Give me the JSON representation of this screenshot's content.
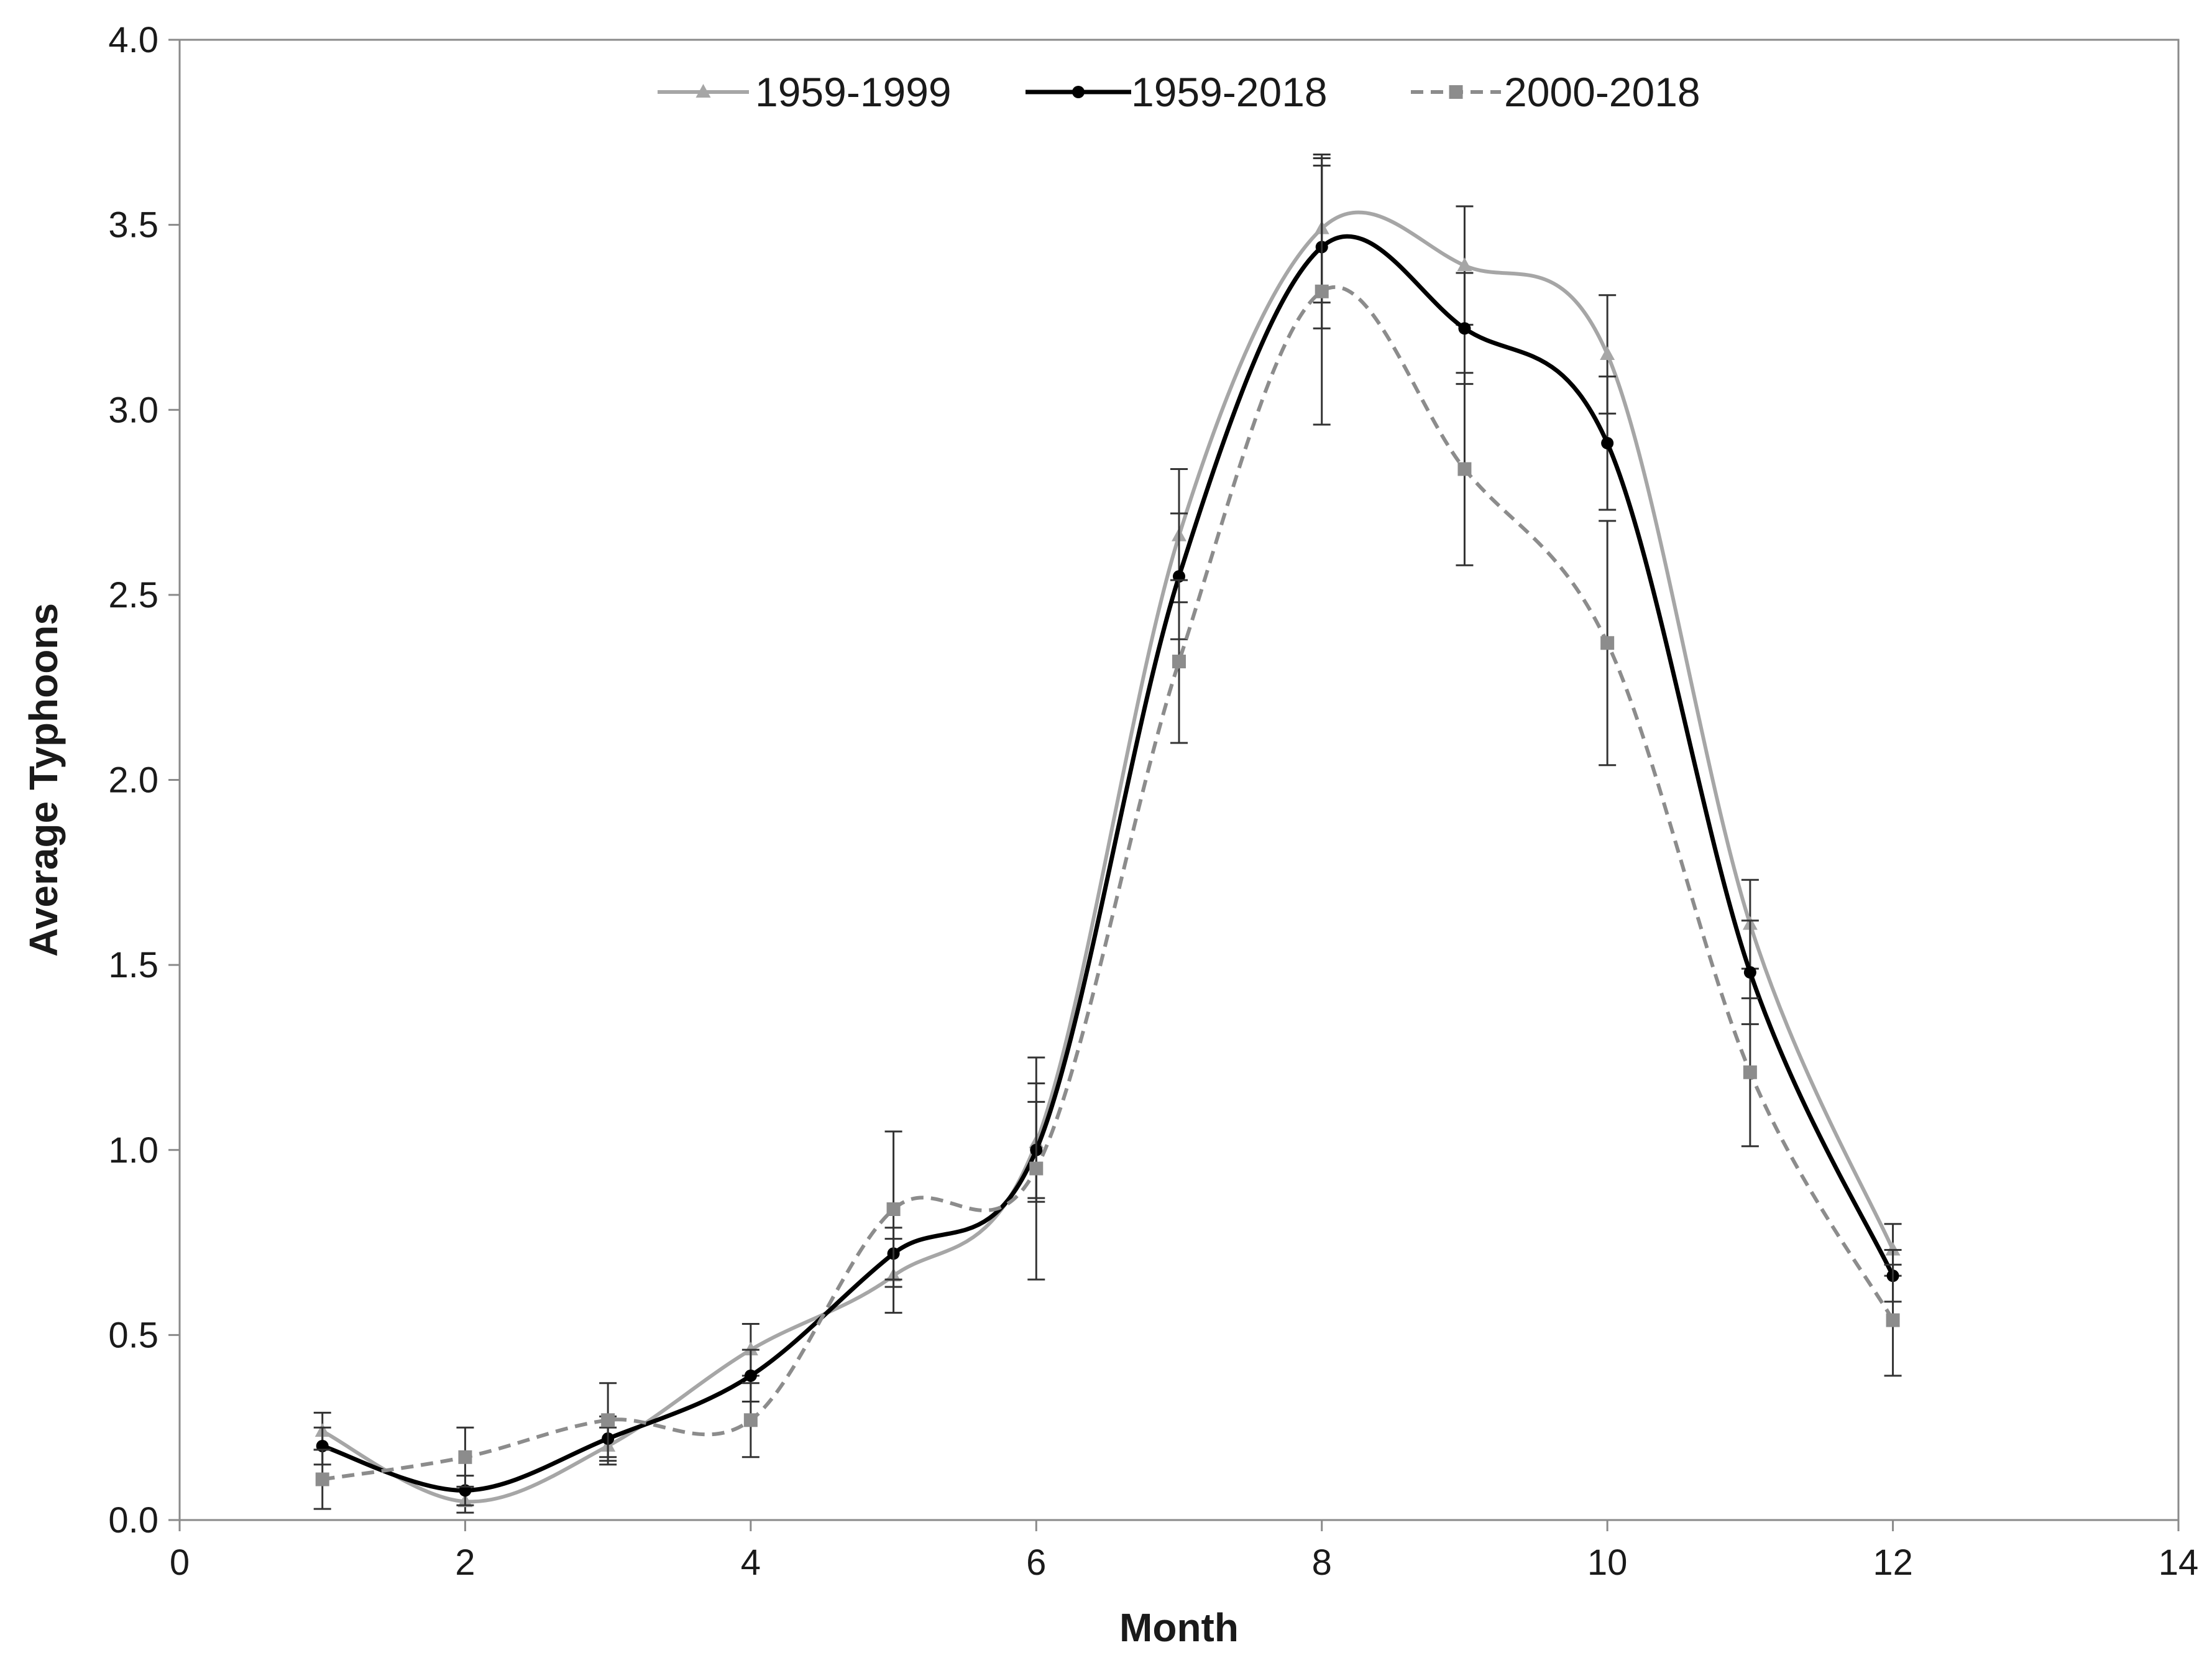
{
  "chart_data": {
    "type": "line",
    "xlabel": "Month",
    "ylabel": "Average Typhoons",
    "xlim": [
      0,
      14
    ],
    "ylim": [
      0,
      4
    ],
    "x_ticks": [
      "0",
      "2",
      "4",
      "6",
      "8",
      "10",
      "12",
      "14"
    ],
    "y_ticks": [
      "0.0",
      "0.5",
      "1.0",
      "1.5",
      "2.0",
      "2.5",
      "3.0",
      "3.5",
      "4.0"
    ],
    "grid": false,
    "legend_position": "top-center",
    "smoothed": true,
    "series": [
      {
        "name": "1959-1999",
        "color": "#a6a6a6",
        "line_style": "solid",
        "marker": "triangle",
        "x": [
          1,
          2,
          3,
          4,
          5,
          6,
          7,
          8,
          9,
          10,
          11,
          12
        ],
        "y": [
          0.24,
          0.05,
          0.2,
          0.46,
          0.66,
          1.02,
          2.66,
          3.49,
          3.39,
          3.15,
          1.61,
          0.73
        ],
        "error": [
          0.05,
          0.03,
          0.05,
          0.07,
          0.1,
          0.16,
          0.18,
          0.2,
          0.16,
          0.16,
          0.12,
          0.07
        ]
      },
      {
        "name": "1959-2018",
        "color": "#000000",
        "line_style": "solid",
        "marker": "circle",
        "x": [
          1,
          2,
          3,
          4,
          5,
          6,
          7,
          8,
          9,
          10,
          11,
          12
        ],
        "y": [
          0.2,
          0.08,
          0.22,
          0.39,
          0.72,
          1.0,
          2.55,
          3.44,
          3.22,
          2.91,
          1.48,
          0.66
        ],
        "error": [
          0.05,
          0.04,
          0.06,
          0.07,
          0.07,
          0.13,
          0.17,
          0.22,
          0.15,
          0.18,
          0.14,
          0.07
        ]
      },
      {
        "name": "2000-2018",
        "color": "#8c8c8c",
        "line_style": "dashed",
        "marker": "square",
        "x": [
          1,
          2,
          3,
          4,
          5,
          6,
          7,
          8,
          9,
          10,
          11,
          12
        ],
        "y": [
          0.11,
          0.17,
          0.27,
          0.27,
          0.84,
          0.95,
          2.32,
          3.32,
          2.84,
          2.37,
          1.21,
          0.54
        ],
        "error": [
          0.08,
          0.08,
          0.1,
          0.1,
          0.21,
          0.3,
          0.22,
          0.36,
          0.26,
          0.33,
          0.2,
          0.15
        ]
      }
    ]
  }
}
